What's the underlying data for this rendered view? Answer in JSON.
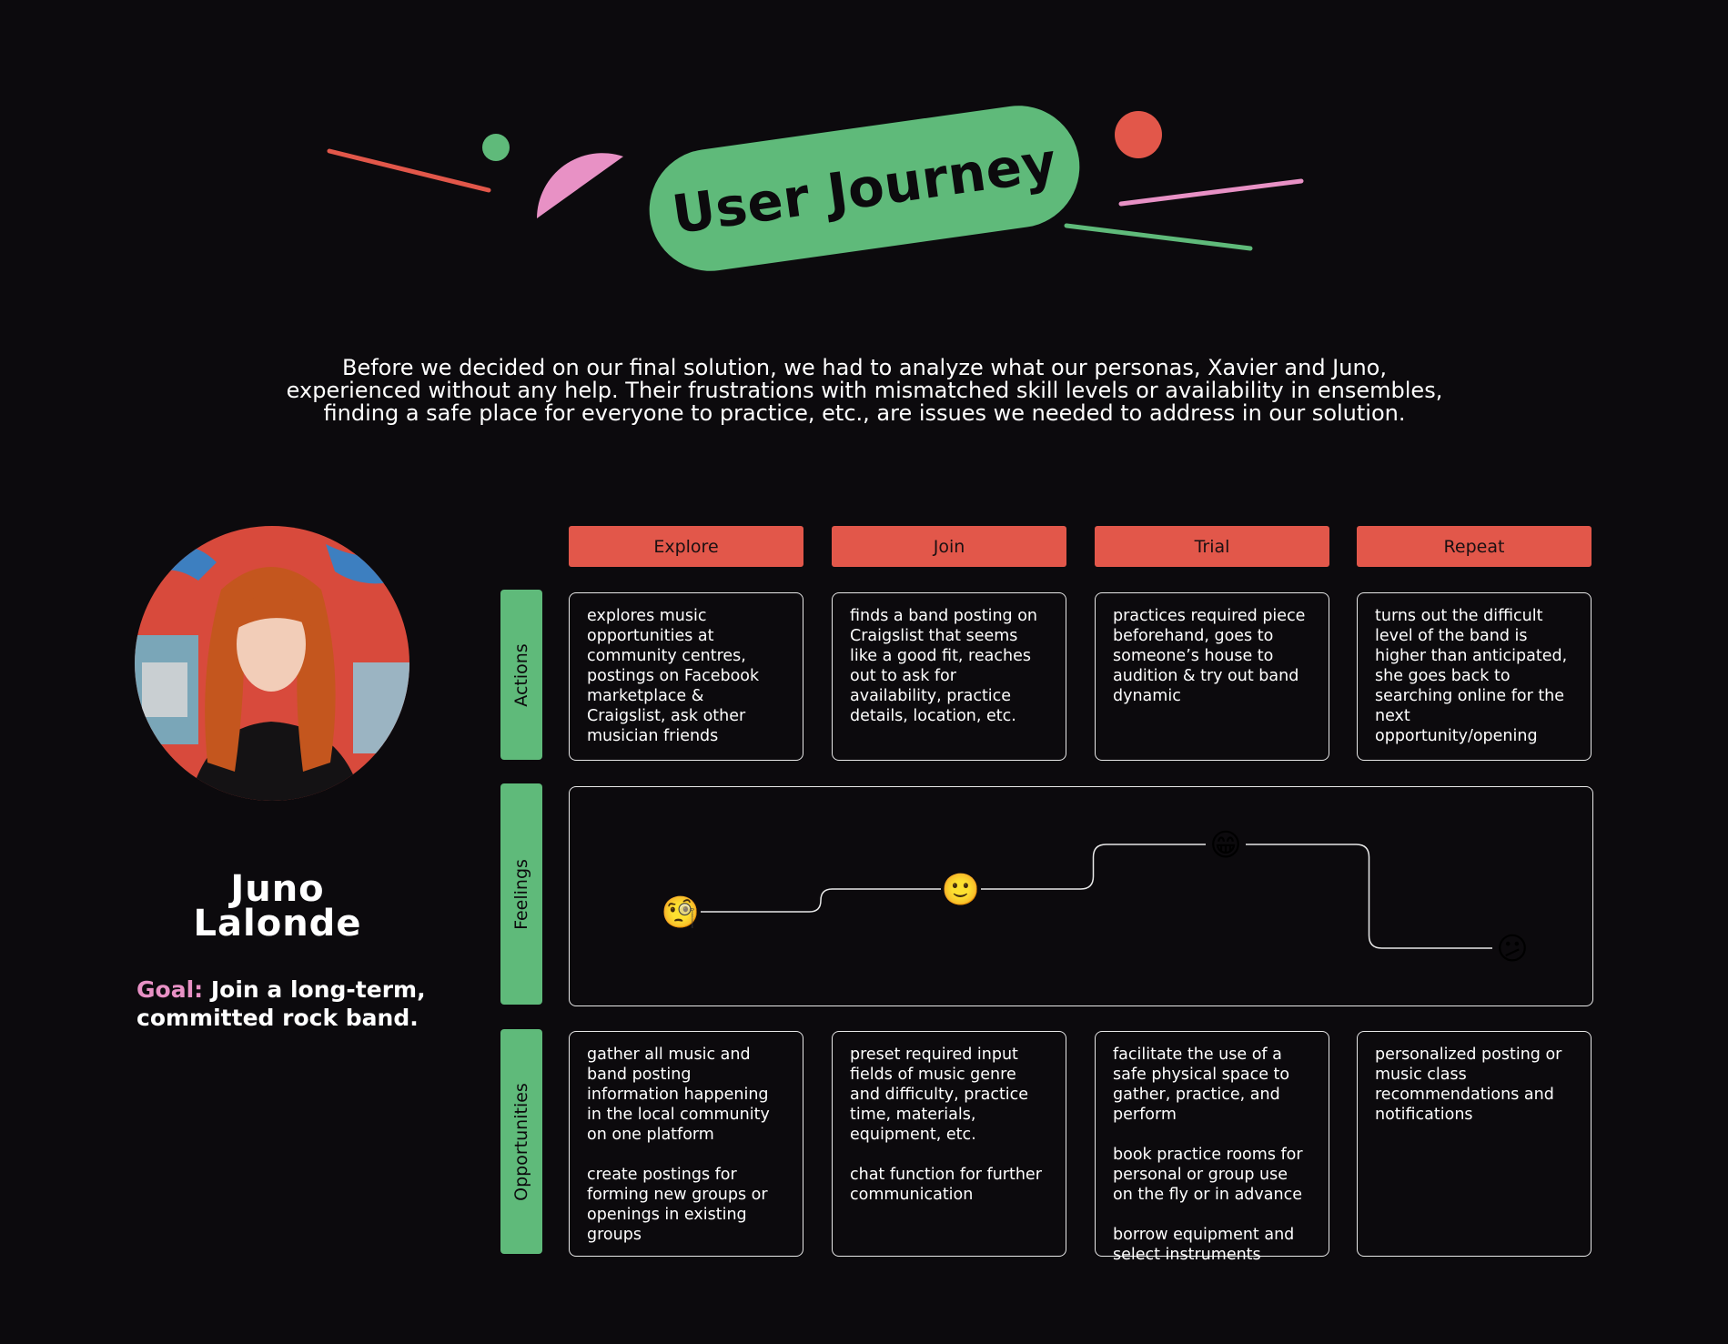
{
  "header": {
    "title": "User Journey",
    "colors": {
      "green": "#5fba7a",
      "red": "#e2574a",
      "pink": "#e891c5"
    }
  },
  "intro": {
    "lines": [
      "Before we decided on our final solution, we had to analyze what our personas, Xavier and Juno,",
      "experienced without any help. Their frustrations with mismatched skill levels or availability in ensembles,",
      "finding a safe place for everyone to practice, etc., are issues we needed to address in our solution."
    ]
  },
  "persona": {
    "first_name": "Juno",
    "last_name": "Lalonde",
    "goal_label": "Goal:",
    "goal_text": "Join a long-term, committed rock band."
  },
  "stages": [
    "Explore",
    "Join",
    "Trial",
    "Repeat"
  ],
  "rows": {
    "actions": "Actions",
    "feelings": "Feelings",
    "opportunities": "Opportunities"
  },
  "actions": [
    "explores music opportunities at community centres, postings on Facebook marketplace & Craigslist, ask other musician friends",
    "finds a band posting on Craigslist that seems like a good fit, reaches out to ask for availability, practice details, location, etc.",
    "practices required piece beforehand, goes to someone’s house to audition & try out band dynamic",
    "turns out the difficult level of the band is higher than anticipated, she goes back to searching online for the next opportunity/opening"
  ],
  "feelings": [
    {
      "stage": "Explore",
      "emoji": "🧐",
      "icon": "monocle-face-icon",
      "level": 2
    },
    {
      "stage": "Join",
      "emoji": "🙂",
      "icon": "slight-smile-icon",
      "level": 3
    },
    {
      "stage": "Trial",
      "emoji": "😁",
      "icon": "grinning-face-icon",
      "level": 4
    },
    {
      "stage": "Repeat",
      "emoji": "😕",
      "icon": "confused-face-icon",
      "level": 1
    }
  ],
  "opportunities": [
    [
      "gather all music and band posting information happening in the local community on one platform",
      "create postings for forming new groups or openings in existing groups"
    ],
    [
      "preset required input fields of music genre and difficulty, practice time, materials, equipment, etc.",
      "chat function for further communication"
    ],
    [
      "facilitate the use of a safe physical space to gather, practice, and perform",
      "book practice rooms for personal or group use on the fly or in advance",
      "borrow equipment and select instruments"
    ],
    [
      "personalized posting or music class recommendations and notifications"
    ]
  ]
}
